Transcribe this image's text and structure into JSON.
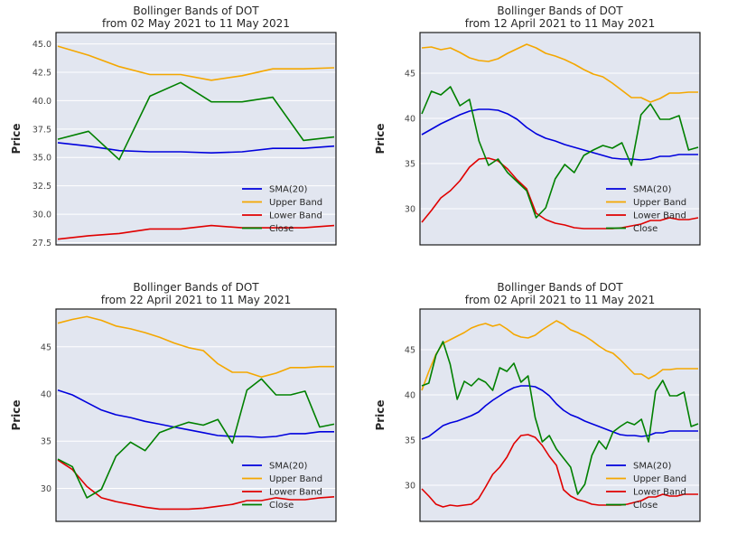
{
  "chart_data": [
    {
      "type": "line",
      "title": "Bollinger Bands of DOT",
      "subtitle": "from 02 May 2021 to 11 May 2021",
      "xlabel": "",
      "ylabel": "Price",
      "ylim": [
        27.3,
        46.0
      ],
      "yticks": [
        27.5,
        30.0,
        32.5,
        35.0,
        37.5,
        40.0,
        42.5,
        45.0
      ],
      "ytick_labels": [
        "27.5",
        "30.0",
        "32.5",
        "35.0",
        "37.5",
        "40.0",
        "42.5",
        "45.0"
      ],
      "grid": true,
      "legend_position": "lower-right",
      "n_points": 10,
      "series": [
        {
          "name": "SMA(20)",
          "color": "#0000dd",
          "values": [
            36.3,
            36.0,
            35.6,
            35.5,
            35.5,
            35.4,
            35.5,
            35.8,
            35.8,
            36.0
          ]
        },
        {
          "name": "Upper Band",
          "color": "#f4a700",
          "values": [
            44.8,
            44.0,
            43.0,
            42.3,
            42.3,
            41.8,
            42.2,
            42.8,
            42.8,
            42.9
          ]
        },
        {
          "name": "Lower Band",
          "color": "#e00000",
          "values": [
            27.8,
            28.1,
            28.3,
            28.7,
            28.7,
            29.0,
            28.8,
            28.8,
            28.8,
            29.0
          ]
        },
        {
          "name": "Close",
          "color": "#008000",
          "values": [
            36.6,
            37.3,
            34.8,
            40.4,
            41.6,
            39.9,
            39.9,
            40.3,
            36.5,
            36.8
          ]
        }
      ]
    },
    {
      "type": "line",
      "title": "Bollinger Bands of DOT",
      "subtitle": "from 12 April 2021 to 11 May 2021",
      "xlabel": "",
      "ylabel": "Price",
      "ylim": [
        26.0,
        49.5
      ],
      "yticks": [
        30,
        35,
        40,
        45
      ],
      "ytick_labels": [
        "30",
        "35",
        "40",
        "45"
      ],
      "grid": true,
      "legend_position": "lower-right",
      "n_points": 30,
      "series": [
        {
          "name": "SMA(20)",
          "color": "#0000dd",
          "values": [
            38.2,
            38.8,
            39.4,
            39.9,
            40.4,
            40.8,
            41.0,
            41.0,
            40.9,
            40.5,
            39.9,
            39.0,
            38.3,
            37.8,
            37.5,
            37.1,
            36.8,
            36.5,
            36.2,
            35.9,
            35.6,
            35.5,
            35.5,
            35.4,
            35.5,
            35.8,
            35.8,
            36.0,
            36.0,
            36.0
          ]
        },
        {
          "name": "Upper Band",
          "color": "#f4a700",
          "values": [
            47.8,
            47.9,
            47.6,
            47.8,
            47.3,
            46.7,
            46.4,
            46.3,
            46.6,
            47.2,
            47.7,
            48.2,
            47.8,
            47.2,
            46.9,
            46.5,
            46.0,
            45.4,
            44.9,
            44.6,
            43.9,
            43.1,
            42.3,
            42.3,
            41.8,
            42.2,
            42.8,
            42.8,
            42.9,
            42.9
          ]
        },
        {
          "name": "Lower Band",
          "color": "#e00000",
          "values": [
            28.5,
            29.8,
            31.2,
            32.0,
            33.1,
            34.6,
            35.5,
            35.6,
            35.3,
            34.4,
            33.2,
            32.2,
            29.5,
            28.8,
            28.4,
            28.2,
            27.9,
            27.8,
            27.8,
            27.8,
            27.8,
            27.9,
            28.1,
            28.3,
            28.7,
            28.7,
            29.0,
            28.8,
            28.8,
            29.0
          ]
        },
        {
          "name": "Close",
          "color": "#008000",
          "values": [
            40.5,
            43.0,
            42.6,
            43.5,
            41.4,
            42.1,
            37.5,
            34.8,
            35.5,
            34.0,
            33.0,
            32.0,
            29.0,
            30.1,
            33.3,
            34.9,
            34.0,
            35.9,
            36.5,
            37.0,
            36.7,
            37.3,
            34.8,
            40.4,
            41.6,
            39.9,
            39.9,
            40.3,
            36.5,
            36.8
          ]
        }
      ]
    },
    {
      "type": "line",
      "title": "Bollinger Bands of DOT",
      "subtitle": "from 22 April 2021 to 11 May 2021",
      "xlabel": "",
      "ylabel": "Price",
      "ylim": [
        26.5,
        49.0
      ],
      "yticks": [
        30,
        35,
        40,
        45
      ],
      "ytick_labels": [
        "30",
        "35",
        "40",
        "45"
      ],
      "grid": true,
      "legend_position": "lower-right",
      "n_points": 20,
      "series": [
        {
          "name": "SMA(20)",
          "color": "#0000dd",
          "values": [
            40.4,
            39.9,
            39.1,
            38.3,
            37.8,
            37.5,
            37.1,
            36.8,
            36.5,
            36.2,
            35.9,
            35.6,
            35.5,
            35.5,
            35.4,
            35.5,
            35.8,
            35.8,
            36.0,
            36.0
          ]
        },
        {
          "name": "Upper Band",
          "color": "#f4a700",
          "values": [
            47.5,
            47.9,
            48.2,
            47.8,
            47.2,
            46.9,
            46.5,
            46.0,
            45.4,
            44.9,
            44.6,
            43.2,
            42.3,
            42.3,
            41.8,
            42.2,
            42.8,
            42.8,
            42.9,
            42.9
          ]
        },
        {
          "name": "Lower Band",
          "color": "#e00000",
          "values": [
            33.0,
            32.0,
            30.2,
            29.0,
            28.6,
            28.3,
            28.0,
            27.8,
            27.8,
            27.8,
            27.9,
            28.1,
            28.3,
            28.7,
            28.7,
            29.0,
            28.8,
            28.8,
            29.0,
            29.1
          ]
        },
        {
          "name": "Close",
          "color": "#008000",
          "values": [
            33.1,
            32.3,
            29.0,
            29.9,
            33.4,
            34.9,
            34.0,
            35.9,
            36.5,
            37.0,
            36.7,
            37.3,
            34.8,
            40.4,
            41.6,
            39.9,
            39.9,
            40.3,
            36.5,
            36.8
          ]
        }
      ]
    },
    {
      "type": "line",
      "title": "Bollinger Bands of DOT",
      "subtitle": "from 02 April 2021 to 11 May 2021",
      "xlabel": "",
      "ylabel": "Price",
      "ylim": [
        26.0,
        49.5
      ],
      "yticks": [
        30,
        35,
        40,
        45
      ],
      "ytick_labels": [
        "30",
        "35",
        "40",
        "45"
      ],
      "grid": true,
      "legend_position": "lower-right",
      "n_points": 40,
      "series": [
        {
          "name": "SMA(20)",
          "color": "#0000dd",
          "values": [
            35.1,
            35.4,
            36.0,
            36.6,
            36.9,
            37.1,
            37.4,
            37.7,
            38.1,
            38.8,
            39.4,
            39.9,
            40.4,
            40.8,
            41.0,
            41.0,
            40.9,
            40.5,
            39.9,
            39.0,
            38.3,
            37.8,
            37.5,
            37.1,
            36.8,
            36.5,
            36.2,
            35.9,
            35.6,
            35.5,
            35.5,
            35.4,
            35.5,
            35.8,
            35.8,
            36.0,
            36.0,
            36.0,
            36.0,
            36.0
          ]
        },
        {
          "name": "Upper Band",
          "color": "#f4a700",
          "values": [
            40.5,
            42.6,
            44.5,
            45.7,
            46.1,
            46.5,
            46.9,
            47.4,
            47.7,
            47.9,
            47.6,
            47.8,
            47.3,
            46.7,
            46.4,
            46.3,
            46.6,
            47.2,
            47.7,
            48.2,
            47.8,
            47.2,
            46.9,
            46.5,
            46.0,
            45.4,
            44.9,
            44.6,
            43.9,
            43.1,
            42.3,
            42.3,
            41.8,
            42.2,
            42.8,
            42.8,
            42.9,
            42.9,
            42.9,
            42.9
          ]
        },
        {
          "name": "Lower Band",
          "color": "#e00000",
          "values": [
            29.6,
            28.8,
            27.9,
            27.6,
            27.8,
            27.7,
            27.8,
            27.9,
            28.5,
            29.8,
            31.2,
            32.0,
            33.1,
            34.6,
            35.5,
            35.6,
            35.3,
            34.4,
            33.2,
            32.2,
            29.5,
            28.8,
            28.4,
            28.2,
            27.9,
            27.8,
            27.8,
            27.8,
            27.8,
            27.9,
            28.1,
            28.3,
            28.7,
            28.7,
            29.0,
            28.8,
            28.8,
            29.0,
            29.0,
            29.0
          ]
        },
        {
          "name": "Close",
          "color": "#008000",
          "values": [
            41.0,
            41.3,
            44.4,
            45.9,
            43.4,
            39.5,
            41.5,
            41.0,
            41.8,
            41.4,
            40.5,
            43.0,
            42.6,
            43.5,
            41.4,
            42.1,
            37.5,
            34.8,
            35.5,
            34.0,
            33.0,
            32.0,
            29.0,
            30.1,
            33.3,
            34.9,
            34.0,
            35.9,
            36.5,
            37.0,
            36.7,
            37.3,
            34.8,
            40.4,
            41.6,
            39.9,
            39.9,
            40.3,
            36.5,
            36.8
          ]
        }
      ]
    }
  ]
}
